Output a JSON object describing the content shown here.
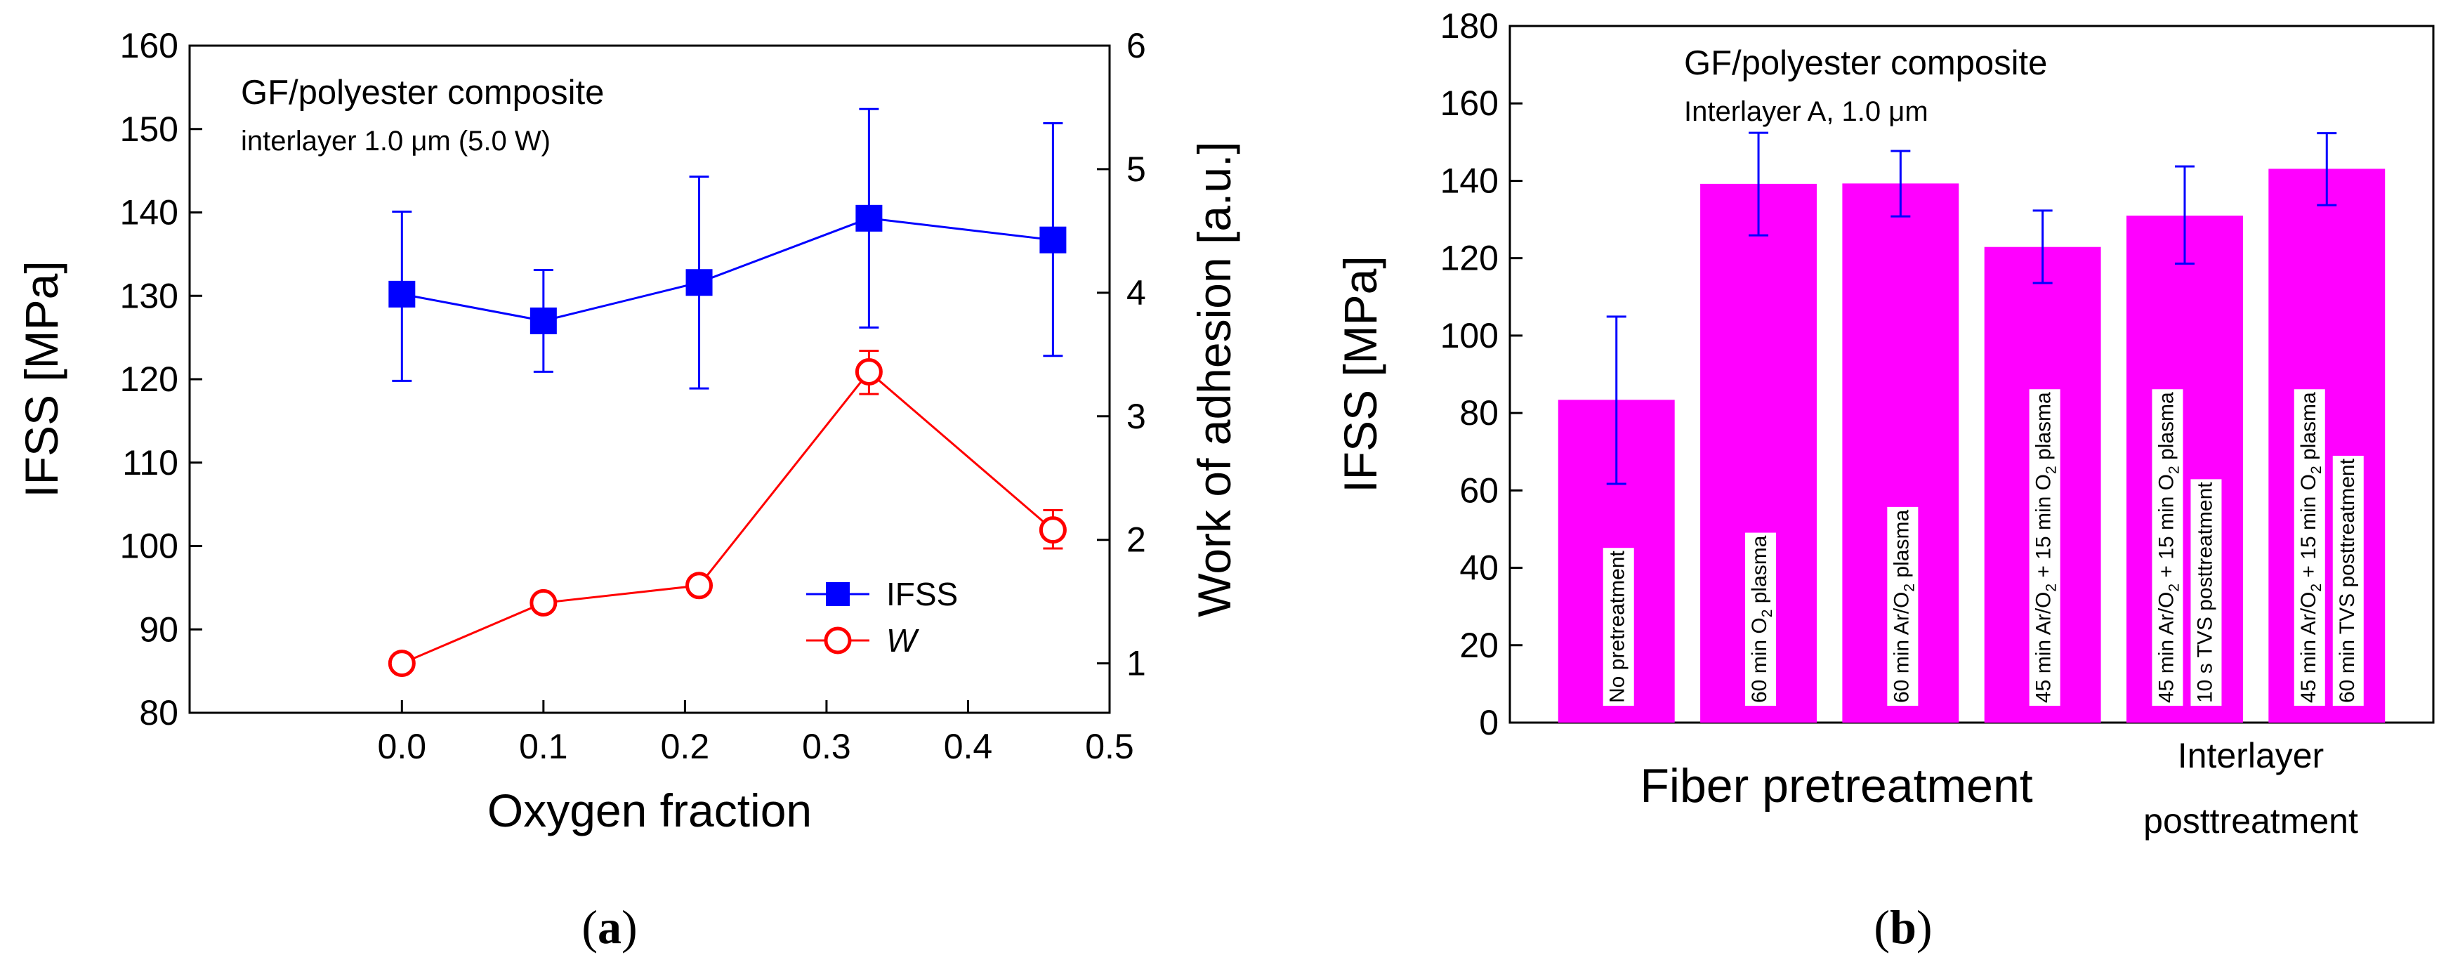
{
  "colors": {
    "ifss_series": "#0000ff",
    "w_series": "#ff0000",
    "bar_fill": "#ff00ff",
    "bar_label_bg": "#ffffff",
    "axis": "#000000"
  },
  "panel_a": {
    "caption_letter": "a",
    "annotation_title": "GF/polyester composite",
    "annotation_sub_prefix": "interlayer 1.0 ",
    "annotation_sub_unit": "μm",
    "annotation_sub_suffix": " (5.0 W)"
  },
  "panel_b": {
    "caption_letter": "b",
    "annotation_title": "GF/polyester composite",
    "annotation_sub_prefix": "Interlayer A, 1.0 ",
    "annotation_sub_unit": "μm",
    "group_fiber": "Fiber pretreatment",
    "group_interlayer_line1": "Interlayer",
    "group_interlayer_line2": "posttreatment"
  },
  "chart_data": [
    {
      "type": "line",
      "panel": "a",
      "xlabel": "Oxygen fraction",
      "ylabel": "IFSS [MPa]",
      "y2label": "Work of adhesion [a.u.]",
      "xlim": [
        -0.15,
        0.5
      ],
      "ylim": [
        80,
        160
      ],
      "y2lim": [
        0.6,
        6
      ],
      "xticks": [
        0.0,
        0.1,
        0.2,
        0.3,
        0.4,
        0.5
      ],
      "xtick_labels": [
        "0.0",
        "0.1",
        "0.2",
        "0.3",
        "0.4",
        "0.5"
      ],
      "yticks": [
        80,
        90,
        100,
        110,
        120,
        130,
        140,
        150,
        160
      ],
      "y2ticks": [
        1,
        2,
        3,
        4,
        5,
        6
      ],
      "legend_position": "lower-right",
      "series": [
        {
          "name": "IFSS",
          "axis": "left",
          "marker": "filled-square",
          "color": "#0000ff",
          "x": [
            0.0,
            0.1,
            0.21,
            0.33,
            0.46
          ],
          "y": [
            130.2,
            127.0,
            131.6,
            139.3,
            136.7
          ],
          "err_low": [
            119.8,
            120.9,
            118.9,
            126.2,
            122.8
          ],
          "err_high": [
            140.1,
            133.1,
            144.3,
            152.4,
            150.7
          ]
        },
        {
          "name": "W",
          "axis": "right",
          "marker": "open-circle",
          "color": "#ff0000",
          "x": [
            0.0,
            0.1,
            0.21,
            0.33,
            0.46
          ],
          "y": [
            1.0,
            1.49,
            1.63,
            3.36,
            2.08
          ],
          "err_low": [
            0.95,
            1.44,
            1.57,
            3.18,
            1.93
          ],
          "err_high": [
            1.05,
            1.54,
            1.7,
            3.53,
            2.24
          ]
        }
      ]
    },
    {
      "type": "bar",
      "panel": "b",
      "ylabel": "IFSS [MPa]",
      "ylim": [
        0,
        180
      ],
      "yticks": [
        0,
        20,
        40,
        60,
        80,
        100,
        120,
        140,
        160,
        180
      ],
      "bar_color": "#ff00ff",
      "categories": [
        "No pretreatment",
        "60 min O2 plasma",
        "60 min Ar/O2 plasma",
        "45 min Ar/O2 + 15 min O2 plasma",
        "45 min Ar/O2 + 15 min O2 plasma, 10 s TVS posttreatment",
        "45 min Ar/O2 + 15 min O2 plasma, 60 min TVS posttreatment"
      ],
      "values": [
        83.4,
        139.2,
        139.3,
        122.9,
        131.0,
        143.1
      ],
      "err_low": [
        61.7,
        125.9,
        130.8,
        113.6,
        118.6,
        133.7
      ],
      "err_high": [
        104.9,
        152.4,
        147.7,
        132.3,
        143.7,
        152.3
      ],
      "bar_labels": [
        [
          [
            {
              "t": "No pretreatment"
            }
          ]
        ],
        [
          [
            {
              "t": "60 min O"
            },
            {
              "t": "2",
              "sub": true
            },
            {
              "t": " plasma"
            }
          ]
        ],
        [
          [
            {
              "t": "60 min Ar/O"
            },
            {
              "t": "2",
              "sub": true
            },
            {
              "t": " plasma"
            }
          ]
        ],
        [
          [
            {
              "t": "45 min Ar/O"
            },
            {
              "t": "2",
              "sub": true
            },
            {
              "t": " + 15 min O"
            },
            {
              "t": "2",
              "sub": true
            },
            {
              "t": " plasma"
            }
          ]
        ],
        [
          [
            {
              "t": "45 min Ar/O"
            },
            {
              "t": "2",
              "sub": true
            },
            {
              "t": " + 15 min O"
            },
            {
              "t": "2",
              "sub": true
            },
            {
              "t": " plasma"
            }
          ],
          [
            {
              "t": "10 s TVS posttreatment"
            }
          ]
        ],
        [
          [
            {
              "t": "45 min Ar/O"
            },
            {
              "t": "2",
              "sub": true
            },
            {
              "t": " + 15 min O"
            },
            {
              "t": "2",
              "sub": true
            },
            {
              "t": " plasma"
            }
          ],
          [
            {
              "t": "60 min TVS posttreatment"
            }
          ]
        ]
      ]
    }
  ]
}
